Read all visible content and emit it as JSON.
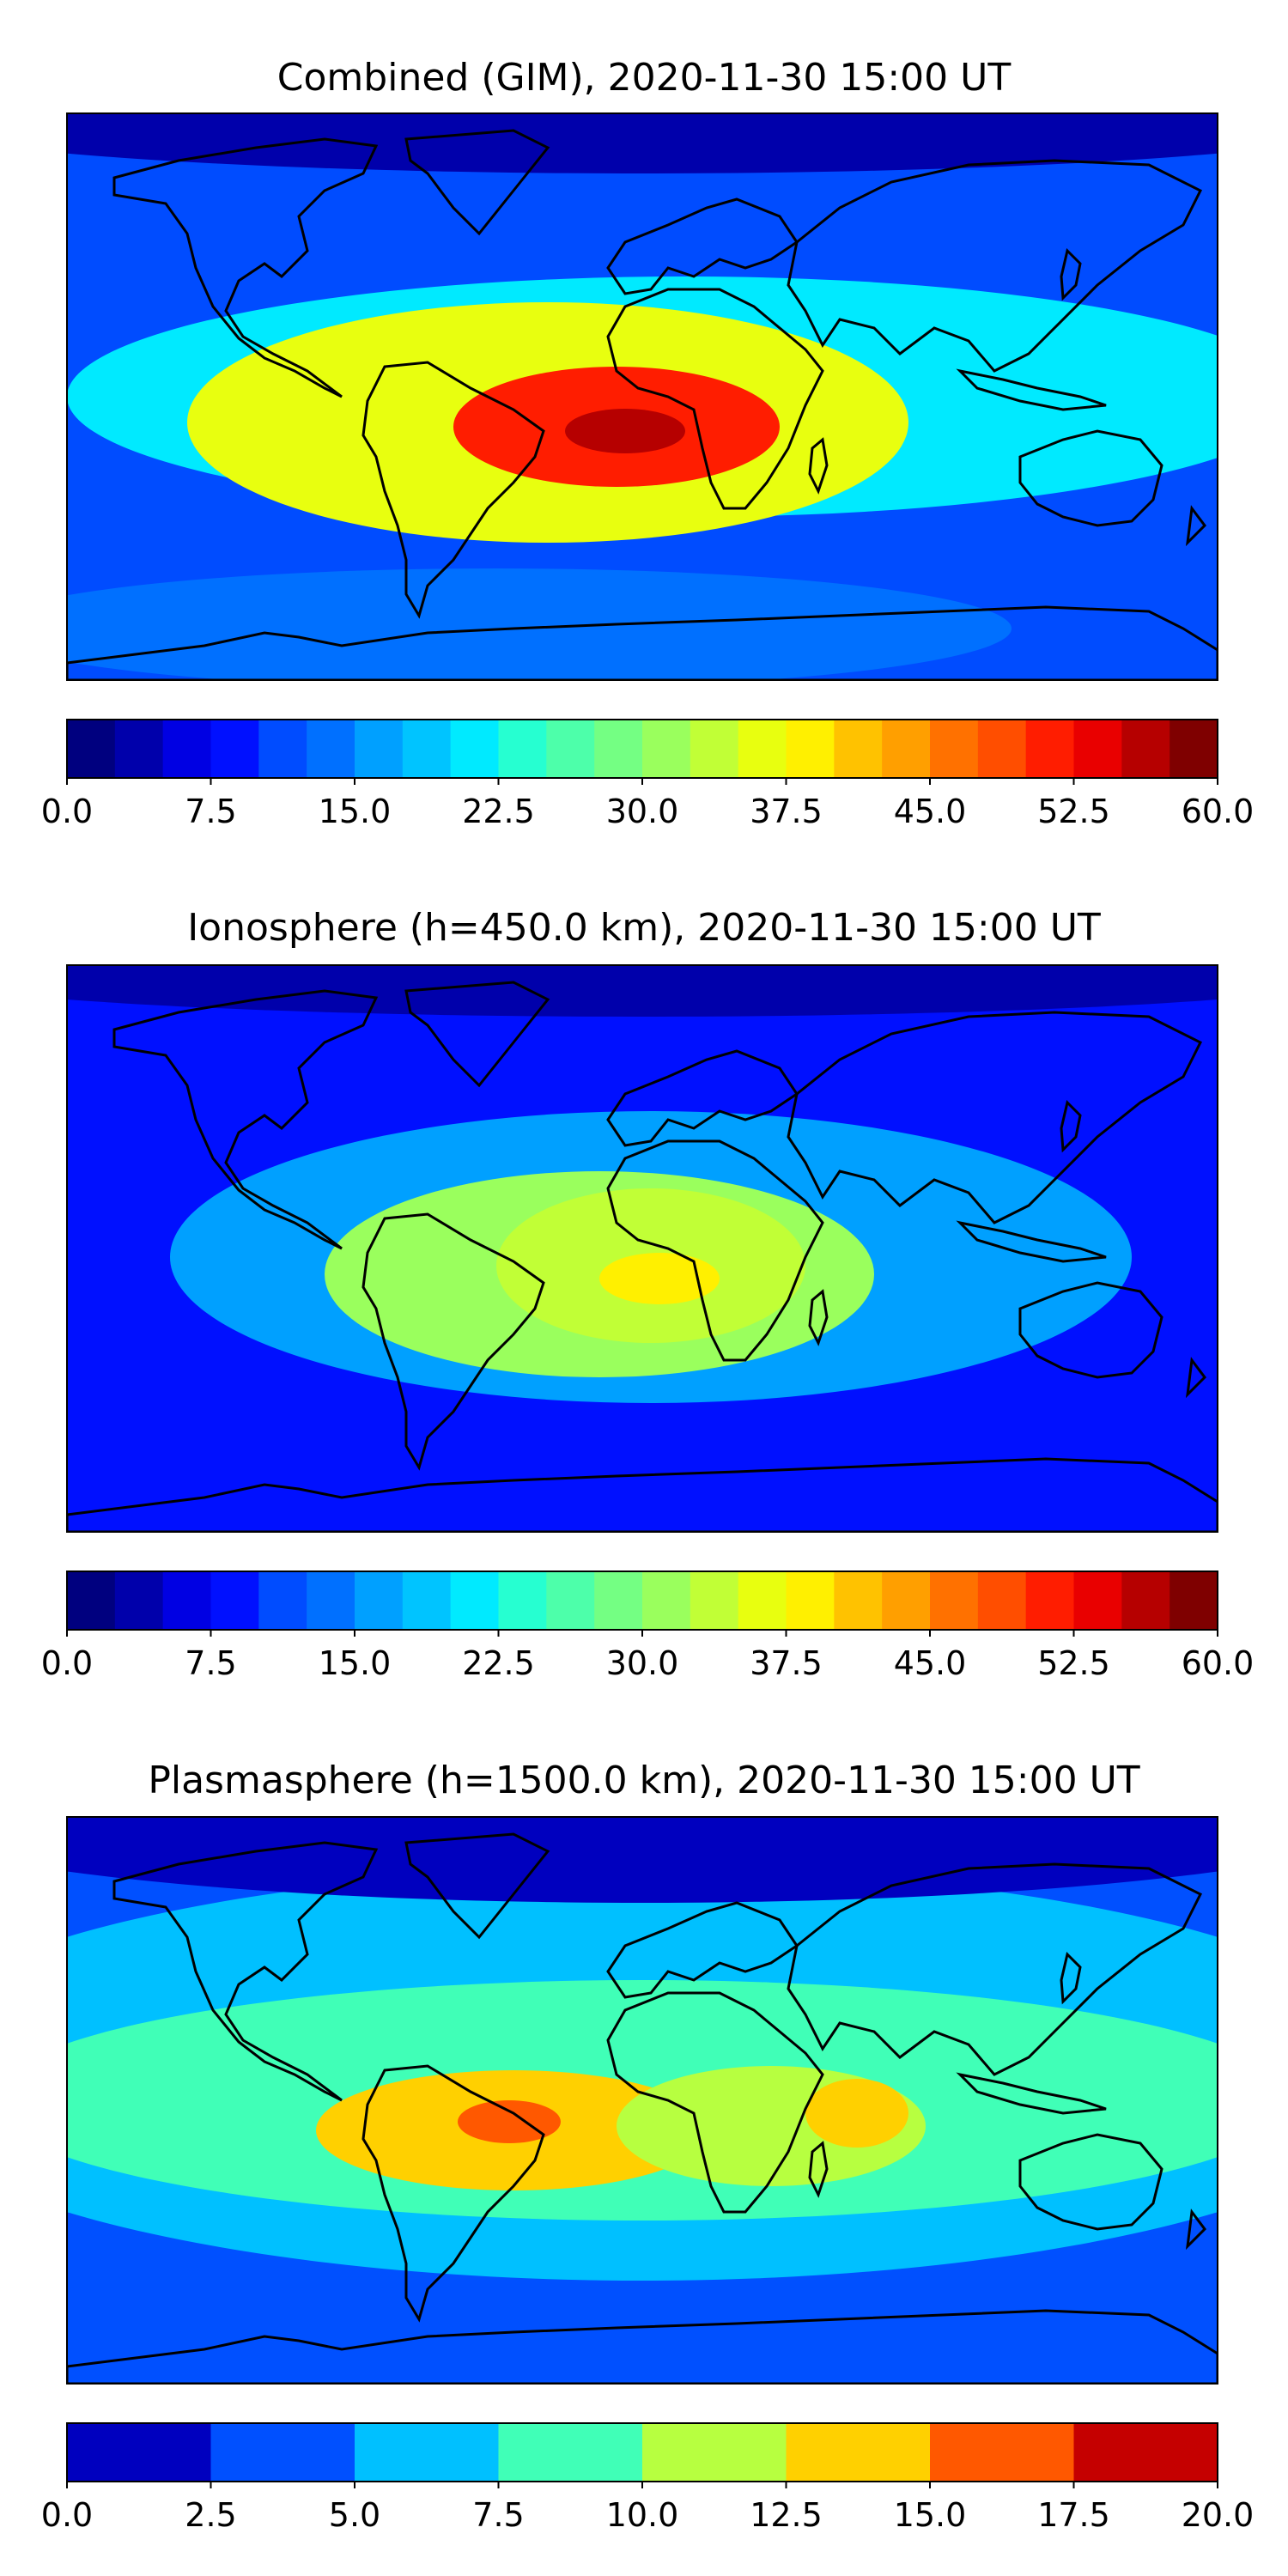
{
  "chart_data": [
    {
      "type": "heatmap",
      "title": "Combined (GIM), 2020-11-30 15:00 UT",
      "colorbar": {
        "range": [
          0,
          60
        ],
        "levels": 24,
        "tick_labels": [
          "0.0",
          "7.5",
          "15.0",
          "22.5",
          "30.0",
          "37.5",
          "45.0",
          "52.5",
          "60.0"
        ]
      },
      "features": [
        {
          "name": "background",
          "value": 10
        },
        {
          "name": "equatorial-belt",
          "value": 20
        },
        {
          "name": "west-pacific",
          "value": 22
        },
        {
          "name": "south-america",
          "value": 37
        },
        {
          "name": "atlantic-africa-core",
          "value": 50
        },
        {
          "name": "gulf-of-guinea-max",
          "value": 57
        },
        {
          "name": "southern-high-latitudes",
          "value": 13
        },
        {
          "name": "arctic",
          "value": 3
        }
      ]
    },
    {
      "type": "heatmap",
      "title": "Ionosphere  (h=450.0 km), 2020-11-30 15:00 UT",
      "colorbar": {
        "range": [
          0,
          60
        ],
        "levels": 24,
        "tick_labels": [
          "0.0",
          "7.5",
          "15.0",
          "22.5",
          "30.0",
          "37.5",
          "45.0",
          "52.5",
          "60.0"
        ]
      },
      "features": [
        {
          "name": "background",
          "value": 9
        },
        {
          "name": "equatorial-belt",
          "value": 17
        },
        {
          "name": "south-america",
          "value": 30
        },
        {
          "name": "atlantic-africa-core",
          "value": 34
        },
        {
          "name": "central-africa-max",
          "value": 38
        },
        {
          "name": "arctic",
          "value": 3
        }
      ]
    },
    {
      "type": "heatmap",
      "title": "Plasmasphere (h=1500.0 km), 2020-11-30 15:00 UT",
      "colorbar": {
        "range": [
          0,
          20
        ],
        "levels": 8,
        "tick_labels": [
          "0.0",
          "2.5",
          "5.0",
          "7.5",
          "10.0",
          "12.5",
          "15.0",
          "17.5",
          "20.0"
        ]
      },
      "features": [
        {
          "name": "background",
          "value": 4
        },
        {
          "name": "mid-latitude-band",
          "value": 6
        },
        {
          "name": "tropical-band",
          "value": 9
        },
        {
          "name": "south-america-high",
          "value": 13
        },
        {
          "name": "brazil-max",
          "value": 16
        },
        {
          "name": "africa-high",
          "value": 11
        },
        {
          "name": "indian-ocean-high",
          "value": 13
        },
        {
          "name": "arctic",
          "value": 1.5
        }
      ]
    }
  ],
  "colors": {
    "jet_24": [
      "#00007f",
      "#0000ab",
      "#0000e3",
      "#0010ff",
      "#004cff",
      "#0070ff",
      "#00a0ff",
      "#00c4ff",
      "#00eaff",
      "#26ffd1",
      "#4dffaa",
      "#74ff83",
      "#9aff5d",
      "#c1ff36",
      "#e8ff0f",
      "#fff000",
      "#ffc200",
      "#ff9f00",
      "#ff7100",
      "#ff4e00",
      "#ff1d00",
      "#e90000",
      "#b60000",
      "#7f0000"
    ],
    "jet_8": [
      "#0000bf",
      "#0050ff",
      "#00c0ff",
      "#40ffb7",
      "#b7ff40",
      "#ffd000",
      "#ff5800",
      "#c50000"
    ],
    "coastline": "#000000"
  }
}
